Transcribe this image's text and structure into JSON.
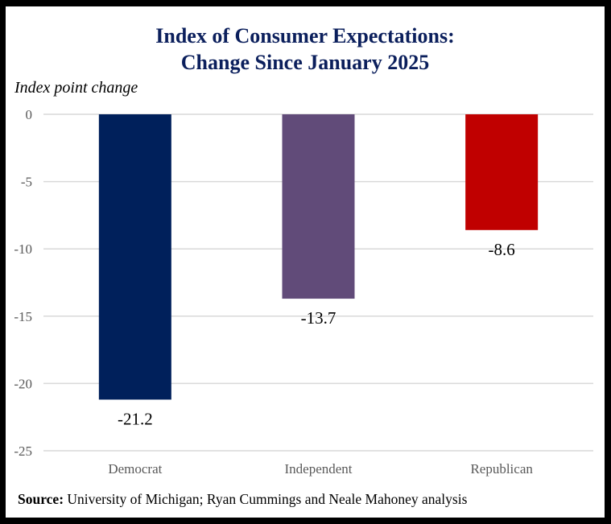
{
  "chart_data": {
    "type": "bar",
    "title_line1": "Index of Consumer Expectations:",
    "title_line2": "Change Since January 2025",
    "ylabel": "Index point change",
    "xlabel": "",
    "categories": [
      "Democrat",
      "Independent",
      "Republican"
    ],
    "values": [
      -21.2,
      -13.7,
      -8.6
    ],
    "data_labels": [
      "-21.2",
      "-13.7",
      "-8.6"
    ],
    "colors": [
      "#00205b",
      "#614b79",
      "#c00000"
    ],
    "ylim": [
      -25,
      0
    ],
    "yticks": [
      0,
      -5,
      -10,
      -15,
      -20,
      -25
    ],
    "ytick_labels": [
      "0",
      "-5",
      "-10",
      "-15",
      "-20",
      "-25"
    ],
    "grid": true,
    "legend": "none"
  },
  "source": {
    "label": "Source:",
    "text": "University of Michigan; Ryan Cummings and Neale Mahoney analysis"
  }
}
